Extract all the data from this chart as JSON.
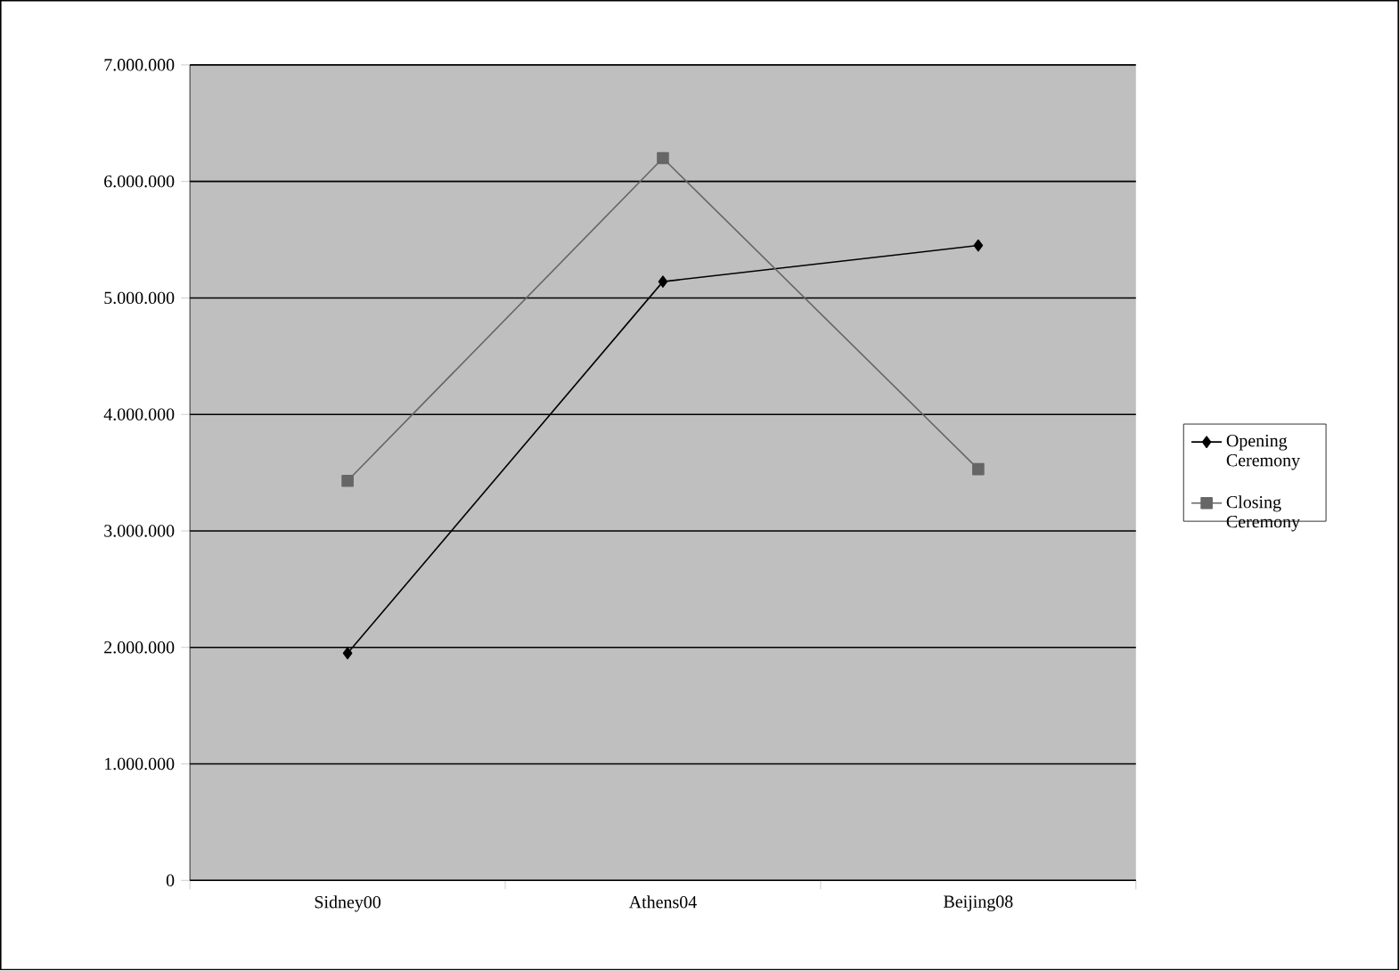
{
  "chart_data": {
    "type": "line",
    "categories": [
      "Sidney00",
      "Athens04",
      "Beijing08"
    ],
    "series": [
      {
        "name": "Opening Ceremony",
        "color": "#000000",
        "marker": "diamond",
        "values": [
          1950000,
          5140000,
          5450000
        ]
      },
      {
        "name": "Closing Ceremony",
        "color": "#666666",
        "marker": "square",
        "values": [
          3430000,
          6200000,
          3530000
        ]
      }
    ],
    "ylim": [
      0,
      7000000
    ],
    "yticks": [
      0,
      {
        "value": 1000000,
        "label": "1.000.000"
      },
      {
        "value": 2000000,
        "label": "2.000.000"
      },
      {
        "value": 3000000,
        "label": "3.000.000"
      },
      {
        "value": 4000000,
        "label": "4.000.000"
      },
      {
        "value": 5000000,
        "label": "5.000.000"
      },
      {
        "value": 6000000,
        "label": "6.000.000"
      },
      {
        "value": 7000000,
        "label": "7.000.000"
      }
    ],
    "grid": "y",
    "legend": "right",
    "line_style": "solid"
  }
}
